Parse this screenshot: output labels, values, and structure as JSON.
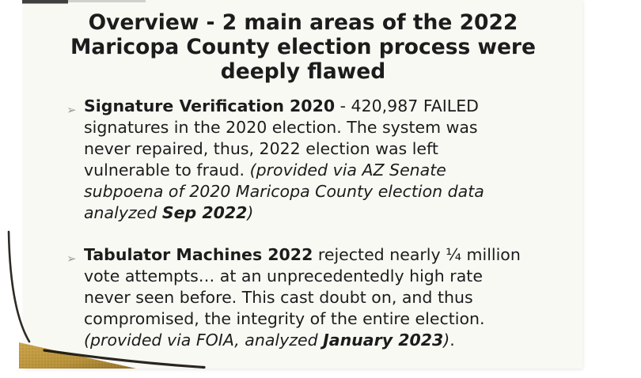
{
  "slide": {
    "title": "Overview - 2 main areas of the 2022 Maricopa County election process were deeply flawed",
    "title_lines": [
      "Overview - 2 main areas of the 2022",
      "Maricopa County election process were",
      "deeply flawed"
    ],
    "bullets": [
      {
        "marker": "➢",
        "segments": [
          {
            "text": "Signature Verification 2020",
            "style": "bold"
          },
          {
            "text": " -  420,987 FAILED signatures in the 2020 election. The system was never repaired, thus, 2022 election was left vulnerable to fraud. ",
            "style": "regular"
          },
          {
            "text": "(provided via AZ Senate subpoena of 2020 Maricopa County election data analyzed ",
            "style": "italic"
          },
          {
            "text": "Sep 2022",
            "style": "bold-italic"
          },
          {
            "text": ")",
            "style": "italic"
          }
        ]
      },
      {
        "marker": "➢",
        "segments": [
          {
            "text": "Tabulator Machines 2022",
            "style": "bold"
          },
          {
            "text": " rejected nearly ¼ million vote attempts… at an unprecedentedly high rate never seen before. This cast doubt on, and thus compromised, the integrity of the entire election. ",
            "style": "regular"
          },
          {
            "text": "(provided via FOIA, analyzed ",
            "style": "italic"
          },
          {
            "text": "January 2023",
            "style": "bold-italic"
          },
          {
            "text": ")",
            "style": "italic"
          },
          {
            "text": ".",
            "style": "regular"
          }
        ]
      }
    ],
    "colors": {
      "slide_bg": "#f9f9f4",
      "text": "#1c1c1c",
      "bullet_marker": "#9b9b9b",
      "accent_gold": "#b8923a",
      "accent_gold_light": "#cba44c",
      "accent_gold_dark": "#8f6e26",
      "edge_line": "#17130c"
    }
  }
}
